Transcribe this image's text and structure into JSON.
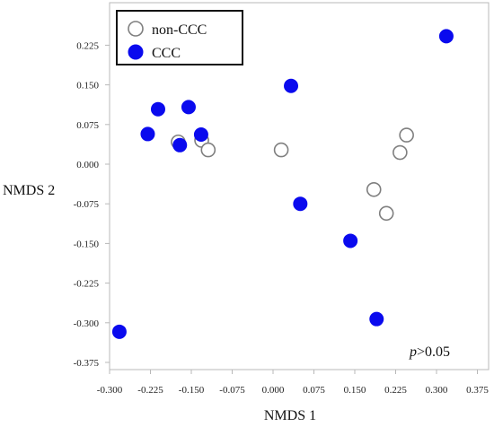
{
  "chart_data": {
    "type": "scatter",
    "title": "",
    "xlabel": "NMDS 1",
    "ylabel": "NMDS 2",
    "xlim": [
      -0.3,
      0.375
    ],
    "ylim": [
      -0.375,
      0.225
    ],
    "x_ticks": [
      "-0.300",
      "-0.225",
      "-0.150",
      "-0.075",
      "0.000",
      "0.075",
      "0.150",
      "0.225",
      "0.300",
      "0.375"
    ],
    "y_ticks": [
      "0.225",
      "0.150",
      "0.075",
      "0.000",
      "-0.075",
      "-0.150",
      "-0.225",
      "-0.300",
      "-0.375"
    ],
    "legend_position": "top-left",
    "annotation": {
      "italic": "p",
      "rest": ">0.05"
    },
    "grid": false,
    "series": [
      {
        "name": "non-CCC",
        "marker": "open-circle",
        "color": "#7f7f7f",
        "points": [
          [
            -0.174,
            0.042
          ],
          [
            -0.131,
            0.045
          ],
          [
            -0.119,
            0.027
          ],
          [
            0.015,
            0.027
          ],
          [
            0.185,
            -0.048
          ],
          [
            0.208,
            -0.093
          ],
          [
            0.233,
            0.022
          ],
          [
            0.245,
            0.055
          ]
        ]
      },
      {
        "name": "CCC",
        "marker": "filled-circle",
        "color": "#0a0aee",
        "points": [
          [
            -0.282,
            -0.317
          ],
          [
            -0.23,
            0.057
          ],
          [
            -0.211,
            0.104
          ],
          [
            -0.171,
            0.036
          ],
          [
            -0.155,
            0.108
          ],
          [
            -0.132,
            0.056
          ],
          [
            0.033,
            0.148
          ],
          [
            0.05,
            -0.075
          ],
          [
            0.142,
            -0.145
          ],
          [
            0.19,
            -0.293
          ],
          [
            0.318,
            0.242
          ]
        ]
      }
    ]
  }
}
